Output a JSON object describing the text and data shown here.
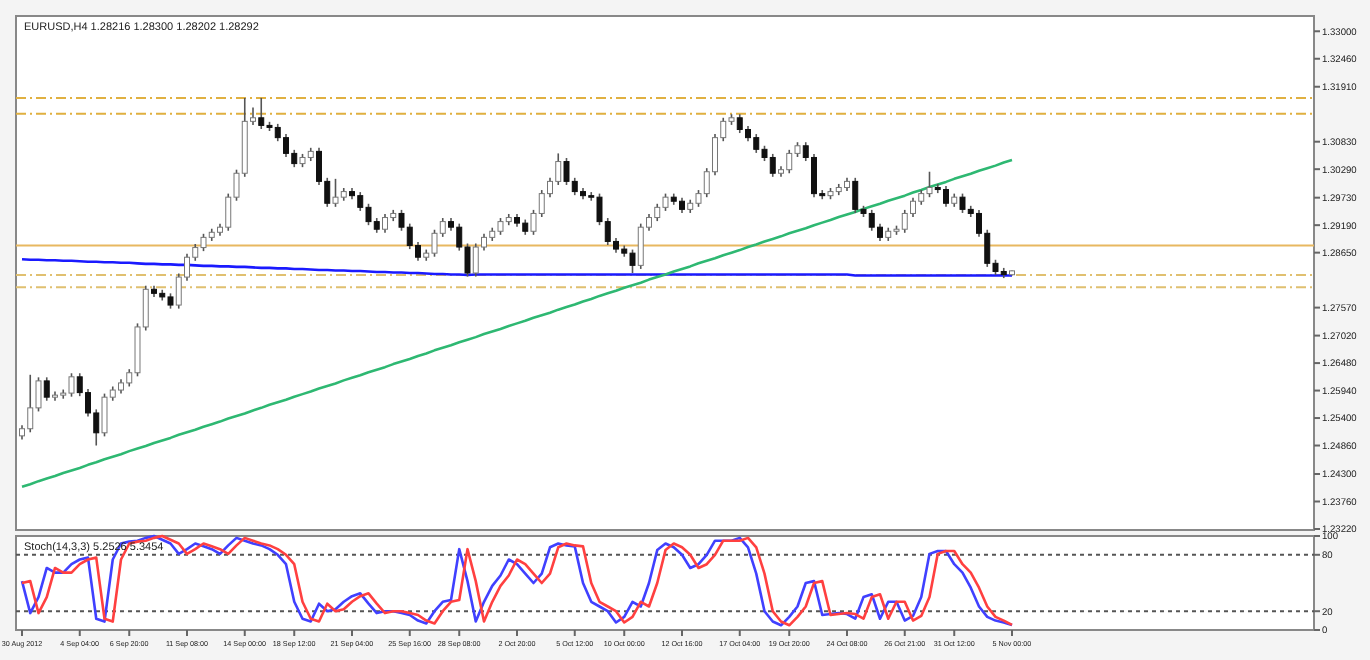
{
  "chart_data": [
    {
      "type": "candlestick",
      "title": "EURUSD,H4 1.28216 1.28300 1.28202 1.28292",
      "categories": [
        null,
        null,
        null,
        null,
        null,
        null,
        null,
        null,
        null,
        null,
        null,
        null,
        null,
        null,
        null,
        null,
        null,
        null,
        null,
        null,
        null,
        null,
        null,
        null,
        null,
        null,
        null,
        null,
        null,
        null,
        null,
        null,
        null,
        null,
        null,
        null,
        null,
        null,
        null,
        null,
        null,
        null,
        null,
        null,
        null,
        null,
        null,
        null,
        null,
        null,
        null,
        null,
        null,
        null,
        null,
        null,
        null,
        null,
        null,
        null,
        null,
        null,
        null,
        null,
        null,
        null,
        null,
        null,
        null,
        null,
        null,
        null,
        null,
        null,
        null,
        null,
        null,
        null,
        null,
        null,
        null,
        null,
        null,
        null,
        null,
        null,
        null,
        null,
        null,
        null,
        null,
        null,
        null,
        null,
        null,
        null,
        null,
        null,
        null,
        null,
        null,
        null,
        null,
        null,
        null,
        null,
        null,
        null,
        null,
        null,
        null,
        null,
        null,
        null,
        null,
        null,
        null,
        null,
        null,
        null,
        null
      ],
      "ohlc": [
        [
          1.2505,
          1.2526,
          1.2498,
          1.2519
        ],
        [
          1.2519,
          1.2625,
          1.2512,
          1.256
        ],
        [
          1.256,
          1.262,
          1.2553,
          1.2613
        ],
        [
          1.2613,
          1.262,
          1.2574,
          1.2581
        ],
        [
          1.2581,
          1.2592,
          1.2574,
          1.2585
        ],
        [
          1.2585,
          1.2596,
          1.2578,
          1.2589
        ],
        [
          1.2589,
          1.2628,
          1.2582,
          1.2621
        ],
        [
          1.2621,
          1.2628,
          1.2583,
          1.259
        ],
        [
          1.259,
          1.2597,
          1.2543,
          1.255
        ],
        [
          1.255,
          1.2557,
          1.2486,
          1.2511
        ],
        [
          1.2511,
          1.2588,
          1.2504,
          1.2581
        ],
        [
          1.2581,
          1.2602,
          1.2574,
          1.2595
        ],
        [
          1.2595,
          1.2616,
          1.2588,
          1.2609
        ],
        [
          1.2609,
          1.2636,
          1.2602,
          1.2629
        ],
        [
          1.2629,
          1.2726,
          1.2622,
          1.2719
        ],
        [
          1.2719,
          1.28,
          1.2712,
          1.2793
        ],
        [
          1.2793,
          1.28,
          1.2778,
          1.2785
        ],
        [
          1.2785,
          1.2792,
          1.2771,
          1.2778
        ],
        [
          1.2778,
          1.2785,
          1.2755,
          1.2762
        ],
        [
          1.2762,
          1.2824,
          1.2755,
          1.2817
        ],
        [
          1.2817,
          1.2863,
          1.281,
          1.2856
        ],
        [
          1.2856,
          1.2882,
          1.2849,
          1.2875
        ],
        [
          1.2875,
          1.2902,
          1.2868,
          1.2895
        ],
        [
          1.2895,
          1.2912,
          1.2888,
          1.2905
        ],
        [
          1.2905,
          1.2922,
          1.2898,
          1.2915
        ],
        [
          1.2915,
          1.2981,
          1.2908,
          1.2974
        ],
        [
          1.2974,
          1.3028,
          1.2967,
          1.3021
        ],
        [
          1.3021,
          1.3169,
          1.3014,
          1.3123
        ],
        [
          1.3123,
          1.315,
          1.3116,
          1.313
        ],
        [
          1.313,
          1.3169,
          1.3108,
          1.3115
        ],
        [
          1.3115,
          1.3122,
          1.3104,
          1.3111
        ],
        [
          1.3111,
          1.3118,
          1.3084,
          1.3091
        ],
        [
          1.3091,
          1.3098,
          1.3053,
          1.306
        ],
        [
          1.306,
          1.3067,
          1.3033,
          1.304
        ],
        [
          1.304,
          1.3059,
          1.3033,
          1.3052
        ],
        [
          1.3052,
          1.3071,
          1.3045,
          1.3064
        ],
        [
          1.3064,
          1.3071,
          1.2998,
          1.3005
        ],
        [
          1.3005,
          1.3012,
          1.2955,
          1.2962
        ],
        [
          1.2962,
          1.301,
          1.2955,
          1.2974
        ],
        [
          1.2974,
          1.2992,
          1.2967,
          1.2985
        ],
        [
          1.2985,
          1.2992,
          1.297,
          1.2977
        ],
        [
          1.2977,
          1.2984,
          1.2947,
          1.2954
        ],
        [
          1.2954,
          1.2961,
          1.2919,
          1.2926
        ],
        [
          1.2926,
          1.2933,
          1.2904,
          1.2911
        ],
        [
          1.2911,
          1.2941,
          1.2904,
          1.2934
        ],
        [
          1.2934,
          1.2949,
          1.2927,
          1.2942
        ],
        [
          1.2942,
          1.2949,
          1.2908,
          1.2915
        ],
        [
          1.2915,
          1.2922,
          1.2872,
          1.2879
        ],
        [
          1.2879,
          1.2886,
          1.2849,
          1.2856
        ],
        [
          1.2856,
          1.2871,
          1.2849,
          1.2864
        ],
        [
          1.2864,
          1.291,
          1.2857,
          1.2903
        ],
        [
          1.2903,
          1.2933,
          1.2896,
          1.2926
        ],
        [
          1.2926,
          1.2933,
          1.2908,
          1.2915
        ],
        [
          1.2915,
          1.2922,
          1.2869,
          1.2876
        ],
        [
          1.2876,
          1.2883,
          1.2818,
          1.2825
        ],
        [
          1.2825,
          1.2883,
          1.2818,
          1.2876
        ],
        [
          1.2876,
          1.2902,
          1.2869,
          1.2895
        ],
        [
          1.2895,
          1.2914,
          1.2888,
          1.2907
        ],
        [
          1.2907,
          1.2933,
          1.29,
          1.2926
        ],
        [
          1.2926,
          1.2941,
          1.2919,
          1.2934
        ],
        [
          1.2934,
          1.2941,
          1.2916,
          1.2923
        ],
        [
          1.2923,
          1.293,
          1.29,
          1.2907
        ],
        [
          1.2907,
          1.2949,
          1.29,
          1.2942
        ],
        [
          1.2942,
          1.2988,
          1.2935,
          1.2981
        ],
        [
          1.2981,
          1.3012,
          1.2974,
          1.3005
        ],
        [
          1.3005,
          1.306,
          1.2998,
          1.3044
        ],
        [
          1.3044,
          1.3051,
          1.2998,
          1.3005
        ],
        [
          1.3005,
          1.3012,
          1.2978,
          1.2985
        ],
        [
          1.2985,
          1.2992,
          1.297,
          1.2977
        ],
        [
          1.2977,
          1.2984,
          1.2967,
          1.2974
        ],
        [
          1.2974,
          1.2981,
          1.2919,
          1.2926
        ],
        [
          1.2926,
          1.2933,
          1.288,
          1.2887
        ],
        [
          1.2887,
          1.2894,
          1.2865,
          1.2872
        ],
        [
          1.2872,
          1.2879,
          1.2857,
          1.2864
        ],
        [
          1.2864,
          1.2871,
          1.2825,
          1.284
        ],
        [
          1.284,
          1.2922,
          1.2833,
          1.2915
        ],
        [
          1.2915,
          1.2941,
          1.2908,
          1.2934
        ],
        [
          1.2934,
          1.2961,
          1.2927,
          1.2954
        ],
        [
          1.2954,
          1.2981,
          1.2947,
          1.2974
        ],
        [
          1.2974,
          1.2981,
          1.2959,
          1.2966
        ],
        [
          1.2966,
          1.2973,
          1.2943,
          1.295
        ],
        [
          1.295,
          1.2969,
          1.2943,
          1.2962
        ],
        [
          1.2962,
          1.2988,
          1.2955,
          1.2981
        ],
        [
          1.2981,
          1.3031,
          1.2974,
          1.3024
        ],
        [
          1.3024,
          1.3098,
          1.3017,
          1.3091
        ],
        [
          1.3091,
          1.313,
          1.3084,
          1.3123
        ],
        [
          1.3123,
          1.3137,
          1.3116,
          1.313
        ],
        [
          1.313,
          1.3137,
          1.31,
          1.3107
        ],
        [
          1.3107,
          1.3114,
          1.3084,
          1.3091
        ],
        [
          1.3091,
          1.3098,
          1.3061,
          1.3068
        ],
        [
          1.3068,
          1.3075,
          1.3045,
          1.3052
        ],
        [
          1.3052,
          1.3059,
          1.3014,
          1.3021
        ],
        [
          1.3021,
          1.3035,
          1.3014,
          1.3028
        ],
        [
          1.3028,
          1.3067,
          1.3021,
          1.306
        ],
        [
          1.306,
          1.3082,
          1.3053,
          1.3075
        ],
        [
          1.3075,
          1.3082,
          1.3045,
          1.3052
        ],
        [
          1.3052,
          1.3059,
          1.2974,
          1.2981
        ],
        [
          1.2981,
          1.2988,
          1.297,
          1.2977
        ],
        [
          1.2977,
          1.2992,
          1.297,
          1.2985
        ],
        [
          1.2985,
          1.3,
          1.2978,
          1.2993
        ],
        [
          1.2993,
          1.3012,
          1.2986,
          1.3005
        ],
        [
          1.3005,
          1.3012,
          1.2943,
          1.295
        ],
        [
          1.295,
          1.2957,
          1.2935,
          1.2942
        ],
        [
          1.2942,
          1.2949,
          1.2908,
          1.2915
        ],
        [
          1.2915,
          1.2922,
          1.2888,
          1.2895
        ],
        [
          1.2895,
          1.2914,
          1.2888,
          1.2907
        ],
        [
          1.2907,
          1.2918,
          1.29,
          1.2911
        ],
        [
          1.2911,
          1.2949,
          1.2904,
          1.2942
        ],
        [
          1.2942,
          1.2973,
          1.2935,
          1.2966
        ],
        [
          1.2966,
          1.2988,
          1.2959,
          1.2981
        ],
        [
          1.2981,
          1.3024,
          1.2974,
          1.2993
        ],
        [
          1.2993,
          1.3,
          1.2982,
          1.2989
        ],
        [
          1.2989,
          1.2996,
          1.2955,
          1.2962
        ],
        [
          1.2962,
          1.2981,
          1.2955,
          1.2974
        ],
        [
          1.2974,
          1.2981,
          1.2943,
          1.295
        ],
        [
          1.295,
          1.2957,
          1.2935,
          1.2942
        ],
        [
          1.2942,
          1.2949,
          1.2896,
          1.2903
        ],
        [
          1.2903,
          1.291,
          1.2837,
          1.2844
        ],
        [
          1.2844,
          1.2851,
          1.2821,
          1.2828
        ],
        [
          1.2828,
          1.2835,
          1.2815,
          1.2822
        ],
        [
          1.28216,
          1.283,
          1.28202,
          1.28292
        ]
      ],
      "series": [
        {
          "type": "line",
          "color": "#1a1aff",
          "values": [
            1.2852,
            1.2851,
            1.2851,
            1.285,
            1.285,
            1.2849,
            1.2849,
            1.2848,
            1.2847,
            1.2847,
            1.2846,
            1.2846,
            1.2845,
            1.2845,
            1.2844,
            1.2843,
            1.2843,
            1.2842,
            1.2842,
            1.2841,
            1.2841,
            1.284,
            1.2839,
            1.2839,
            1.2838,
            1.2838,
            1.2837,
            1.2837,
            1.2836,
            1.2835,
            1.2835,
            1.2834,
            1.2834,
            1.2833,
            1.2833,
            1.2832,
            1.2831,
            1.2831,
            1.283,
            1.283,
            1.2829,
            1.2829,
            1.2828,
            1.2827,
            1.2827,
            1.2826,
            1.2826,
            1.2825,
            1.2825,
            1.2824,
            1.2823,
            1.2823,
            1.2822,
            1.2822,
            1.2821,
            1.2822,
            1.2822,
            1.2822,
            1.2822,
            1.2822,
            1.2822,
            1.2822,
            1.2822,
            1.2822,
            1.2822,
            1.2822,
            1.2822,
            1.2822,
            1.2822,
            1.2822,
            1.2822,
            1.2822,
            1.2822,
            1.2822,
            1.2822,
            1.2822,
            1.2822,
            1.2822,
            1.2822,
            1.2822,
            1.2822,
            1.2822,
            1.2822,
            1.2822,
            1.2822,
            1.2822,
            1.2822,
            1.2822,
            1.2822,
            1.2822,
            1.2822,
            1.2822,
            1.2822,
            1.2822,
            1.2822,
            1.2822,
            1.2822,
            1.2822,
            1.2822,
            1.2822,
            1.2822,
            1.282,
            1.282,
            1.282,
            1.282,
            1.282,
            1.282,
            1.282,
            1.282,
            1.282,
            1.282,
            1.282,
            1.282,
            1.282,
            1.282,
            1.282,
            1.282,
            1.282,
            1.282,
            1.282,
            1.282
          ]
        },
        {
          "type": "line",
          "color": "#2eb872",
          "values": [
            1.2405,
            1.241,
            1.2416,
            1.2421,
            1.2426,
            1.2432,
            1.2437,
            1.2442,
            1.2448,
            1.2453,
            1.2459,
            1.2464,
            1.2469,
            1.2475,
            1.248,
            1.2485,
            1.2491,
            1.2496,
            1.2501,
            1.2507,
            1.2512,
            1.2517,
            1.2523,
            1.2528,
            1.2533,
            1.2539,
            1.2544,
            1.2549,
            1.2555,
            1.256,
            1.2566,
            1.2571,
            1.2576,
            1.2582,
            1.2587,
            1.2592,
            1.2598,
            1.2603,
            1.2608,
            1.2614,
            1.2619,
            1.2624,
            1.263,
            1.2635,
            1.264,
            1.2646,
            1.2651,
            1.2656,
            1.2662,
            1.2667,
            1.2673,
            1.2678,
            1.2683,
            1.2689,
            1.2694,
            1.2699,
            1.2705,
            1.271,
            1.2715,
            1.2721,
            1.2726,
            1.2731,
            1.2737,
            1.2742,
            1.2747,
            1.2753,
            1.2758,
            1.2763,
            1.2769,
            1.2774,
            1.278,
            1.2785,
            1.279,
            1.2796,
            1.2801,
            1.2806,
            1.2812,
            1.2817,
            1.2822,
            1.2828,
            1.2833,
            1.2838,
            1.2844,
            1.2849,
            1.2854,
            1.286,
            1.2865,
            1.287,
            1.2876,
            1.2881,
            1.2887,
            1.2892,
            1.2897,
            1.2903,
            1.2908,
            1.2913,
            1.2919,
            1.2924,
            1.2929,
            1.2935,
            1.294,
            1.2945,
            1.2951,
            1.2956,
            1.2961,
            1.2967,
            1.2972,
            1.2977,
            1.2983,
            1.2988,
            1.2994,
            1.2999,
            1.3004,
            1.301,
            1.3015,
            1.302,
            1.3026,
            1.3031,
            1.3036,
            1.3042,
            1.3047
          ]
        }
      ],
      "ylim": [
        1.232,
        1.333
      ],
      "yticks": [
        {
          "value": 1.33,
          "label": "1.33000"
        },
        {
          "value": 1.3246,
          "label": "1.32460"
        },
        {
          "value": 1.3191,
          "label": "1.31910"
        },
        {
          "value": 1.3083,
          "label": "1.30830"
        },
        {
          "value": 1.3029,
          "label": "1.30290"
        },
        {
          "value": 1.2973,
          "label": "1.29730"
        },
        {
          "value": 1.2919,
          "label": "1.29190"
        },
        {
          "value": 1.2865,
          "label": "1.28650"
        },
        {
          "value": 1.2757,
          "label": "1.27570"
        },
        {
          "value": 1.2702,
          "label": "1.27020"
        },
        {
          "value": 1.2648,
          "label": "1.26480"
        },
        {
          "value": 1.2594,
          "label": "1.25940"
        },
        {
          "value": 1.254,
          "label": "1.25400"
        },
        {
          "value": 1.2486,
          "label": "1.24860"
        },
        {
          "value": 1.243,
          "label": "1.24300"
        },
        {
          "value": 1.2376,
          "label": "1.23760"
        },
        {
          "value": 1.2322,
          "label": "1.23220"
        }
      ],
      "ref_lines": [
        {
          "axis": "y",
          "value": 1.3169,
          "color": "#e0b040",
          "line_style": "dashed"
        },
        {
          "axis": "y",
          "value": 1.3138,
          "color": "#e0b040",
          "line_style": "dashed"
        },
        {
          "axis": "y",
          "value": 1.2879,
          "color": "#e8b860",
          "line_style": "solid"
        },
        {
          "axis": "y",
          "value": 1.2821,
          "color": "#e0c070",
          "line_style": "dashed"
        },
        {
          "axis": "y",
          "value": 1.2797,
          "color": "#e0c070",
          "line_style": "dashed"
        }
      ],
      "tick_labels": "y"
    },
    {
      "type": "line",
      "title": "Stoch(14,3,3) 5.2526 5.3454",
      "categories": [
        "30 Aug 2012",
        null,
        null,
        null,
        null,
        null,
        null,
        "4 Sep 04:00",
        null,
        null,
        null,
        null,
        null,
        "6 Sep 20:00",
        null,
        null,
        null,
        null,
        null,
        null,
        "11 Sep 08:00",
        null,
        null,
        null,
        null,
        null,
        null,
        "14 Sep 00:00",
        null,
        null,
        null,
        null,
        null,
        "18 Sep 12:00",
        null,
        null,
        null,
        null,
        null,
        null,
        "21 Sep 04:00",
        null,
        null,
        null,
        null,
        null,
        null,
        "25 Sep 16:00",
        null,
        null,
        null,
        null,
        null,
        "28 Sep 08:00",
        null,
        null,
        null,
        null,
        null,
        null,
        "2 Oct 20:00",
        null,
        null,
        null,
        null,
        null,
        null,
        "5 Oct 12:00",
        null,
        null,
        null,
        null,
        null,
        "10 Oct 00:00",
        null,
        null,
        null,
        null,
        null,
        null,
        "12 Oct 16:00",
        null,
        null,
        null,
        null,
        null,
        null,
        "17 Oct 04:00",
        null,
        null,
        null,
        null,
        null,
        "19 Oct 20:00",
        null,
        null,
        null,
        null,
        null,
        null,
        "24 Oct 08:00",
        null,
        null,
        null,
        null,
        null,
        null,
        "26 Oct 21:00",
        null,
        null,
        null,
        null,
        null,
        "31 Oct 12:00",
        null,
        null,
        null,
        null,
        null,
        null,
        "5 Nov 00:00"
      ],
      "series": [
        {
          "color": "#4040ff",
          "values": [
            52,
            18,
            35,
            66,
            61,
            61,
            70,
            75,
            77,
            12,
            9,
            75,
            92,
            94,
            95,
            98,
            100,
            96,
            92,
            81,
            86,
            92,
            89,
            86,
            81,
            90,
            98,
            95,
            92,
            90,
            86,
            80,
            70,
            30,
            12,
            9,
            28,
            20,
            22,
            30,
            36,
            39,
            28,
            18,
            20,
            20,
            18,
            16,
            10,
            7,
            20,
            30,
            32,
            86,
            52,
            9,
            30,
            47,
            58,
            75,
            70,
            60,
            50,
            60,
            88,
            92,
            90,
            89,
            50,
            30,
            25,
            20,
            8,
            14,
            30,
            25,
            50,
            85,
            92,
            88,
            80,
            66,
            70,
            80,
            95,
            95,
            95,
            98,
            88,
            60,
            20,
            9,
            5,
            14,
            25,
            50,
            52,
            16,
            17,
            18,
            17,
            12,
            35,
            38,
            12,
            30,
            30,
            10,
            15,
            35,
            81,
            84,
            84,
            70,
            61,
            45,
            25,
            14,
            10,
            8,
            5.2526
          ]
        },
        {
          "color": "#ff4040",
          "values": [
            50,
            52,
            18,
            35,
            66,
            61,
            61,
            70,
            75,
            77,
            12,
            9,
            75,
            92,
            94,
            95,
            98,
            100,
            96,
            92,
            81,
            86,
            92,
            89,
            86,
            81,
            90,
            98,
            95,
            92,
            90,
            86,
            80,
            70,
            30,
            12,
            9,
            28,
            20,
            22,
            30,
            36,
            39,
            28,
            18,
            20,
            20,
            18,
            16,
            10,
            7,
            20,
            30,
            32,
            86,
            52,
            9,
            30,
            47,
            58,
            75,
            70,
            60,
            50,
            60,
            88,
            92,
            90,
            89,
            50,
            30,
            25,
            20,
            8,
            14,
            30,
            25,
            50,
            85,
            92,
            88,
            80,
            66,
            70,
            80,
            95,
            95,
            95,
            98,
            88,
            60,
            20,
            9,
            5,
            14,
            25,
            50,
            52,
            16,
            17,
            18,
            17,
            12,
            35,
            38,
            12,
            30,
            30,
            10,
            15,
            35,
            81,
            84,
            84,
            70,
            61,
            45,
            25,
            14,
            10,
            5.3454
          ]
        }
      ],
      "ylim": [
        0,
        100
      ],
      "yticks": [
        0,
        20,
        80,
        100
      ],
      "ref_lines": [
        {
          "axis": "y",
          "value": 20,
          "color": "#555555",
          "line_style": "dotted"
        },
        {
          "axis": "y",
          "value": 80,
          "color": "#555555",
          "line_style": "dotted"
        }
      ]
    }
  ]
}
